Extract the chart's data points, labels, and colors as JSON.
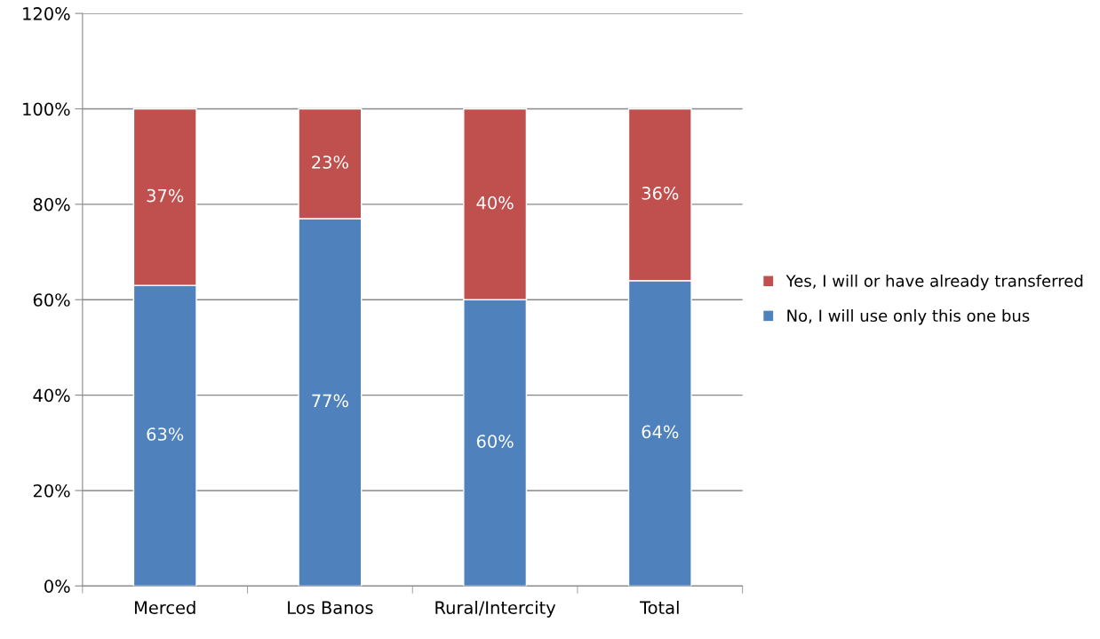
{
  "chart_data": {
    "type": "bar",
    "stacked": true,
    "categories": [
      "Merced",
      "Los Banos",
      "Rural/Intercity",
      "Total"
    ],
    "series": [
      {
        "name": "No, I will use only this one bus",
        "color": "#4f81bd",
        "values": [
          63,
          77,
          60,
          64
        ],
        "value_labels": [
          "63%",
          "77%",
          "60%",
          "64%"
        ]
      },
      {
        "name": "Yes, I will or have already transferred",
        "color": "#c0504d",
        "values": [
          37,
          23,
          40,
          36
        ],
        "value_labels": [
          "37%",
          "23%",
          "40%",
          "36%"
        ]
      }
    ],
    "ylim": [
      0,
      120
    ],
    "yticks": [
      {
        "value": 0,
        "label": "0%"
      },
      {
        "value": 20,
        "label": "20%"
      },
      {
        "value": 40,
        "label": "40%"
      },
      {
        "value": 60,
        "label": "60%"
      },
      {
        "value": 80,
        "label": "80%"
      },
      {
        "value": 100,
        "label": "100%"
      },
      {
        "value": 120,
        "label": "120%"
      }
    ],
    "grid": "y",
    "legend": "right"
  }
}
